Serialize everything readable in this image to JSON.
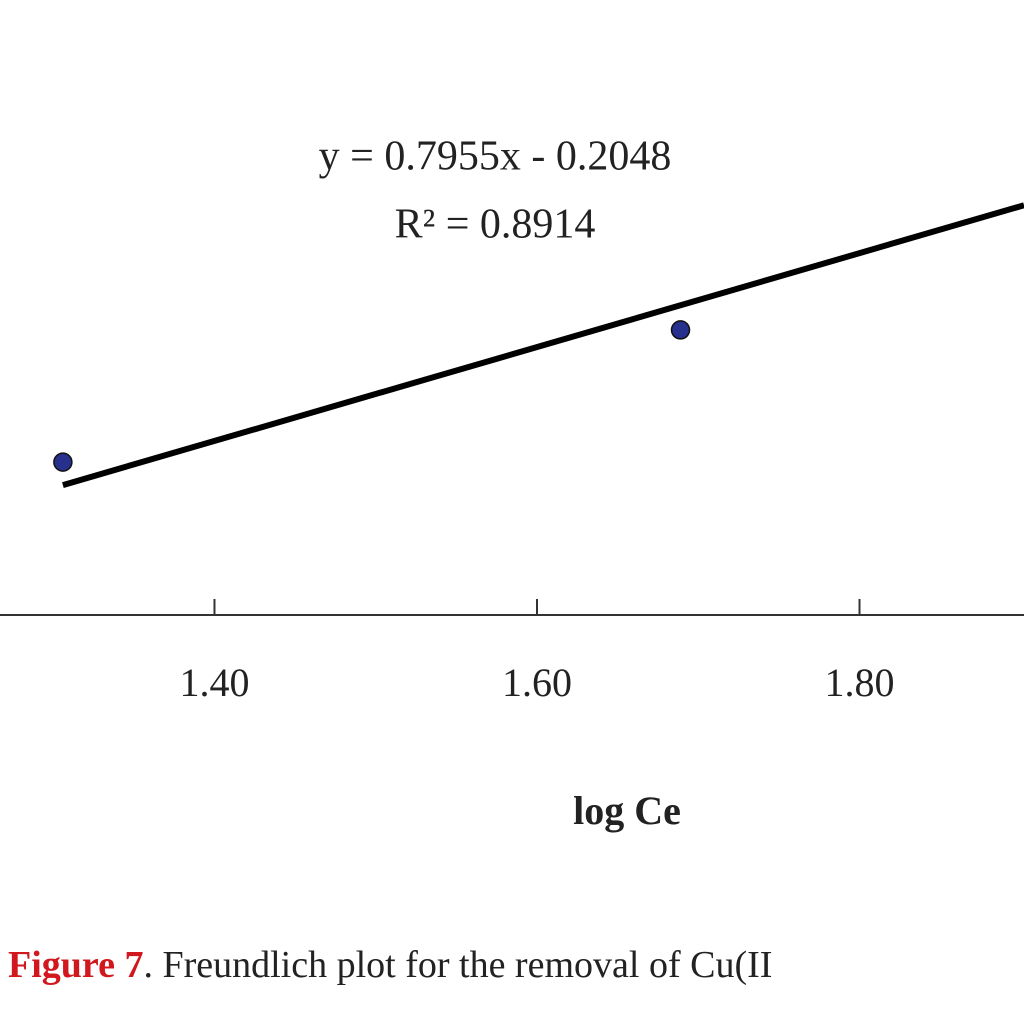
{
  "chart_data": {
    "type": "scatter",
    "equation": "y = 0.7955x - 0.2048",
    "r_squared": "R² = 0.8914",
    "trendline": {
      "slope": 0.7955,
      "intercept": -0.2048
    },
    "x_label": "log Ce",
    "x": [
      1.306,
      1.689
    ],
    "series": [
      {
        "color": "#27308c",
        "values": [
          0.873,
          1.097
        ]
      }
    ],
    "xlim": [
      1.267,
      1.902
    ],
    "ylim": [
      0.614,
      1.656
    ],
    "xticks": [
      {
        "value": 1.4,
        "label": "1.40"
      },
      {
        "value": 1.6,
        "label": "1.60"
      },
      {
        "value": 1.8,
        "label": "1.80"
      }
    ],
    "caption": {
      "label": "Figure 7",
      "text": ". Freundlich plot for the removal of Cu(II"
    }
  }
}
